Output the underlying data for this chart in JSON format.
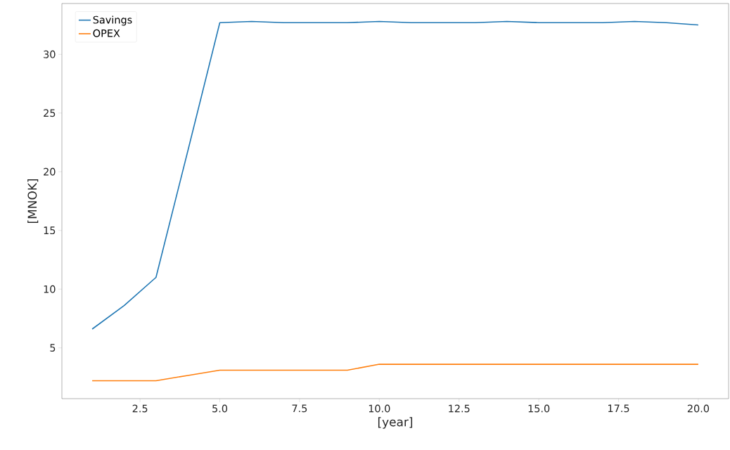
{
  "chart_data": {
    "type": "line",
    "xlabel": "[year]",
    "ylabel": "[MNOK]",
    "x": [
      1,
      2,
      3,
      4,
      5,
      6,
      7,
      8,
      9,
      10,
      11,
      12,
      13,
      14,
      15,
      16,
      17,
      18,
      19,
      20
    ],
    "series": [
      {
        "name": "Savings",
        "color": "#1f77b4",
        "values": [
          6.6,
          8.6,
          11.0,
          21.8,
          32.7,
          32.8,
          32.7,
          32.7,
          32.7,
          32.8,
          32.7,
          32.7,
          32.7,
          32.8,
          32.7,
          32.7,
          32.7,
          32.8,
          32.7,
          32.5
        ]
      },
      {
        "name": "OPEX",
        "color": "#ff7f0e",
        "values": [
          2.2,
          2.2,
          2.2,
          2.65,
          3.1,
          3.1,
          3.1,
          3.1,
          3.1,
          3.6,
          3.6,
          3.6,
          3.6,
          3.6,
          3.6,
          3.6,
          3.6,
          3.6,
          3.6,
          3.6
        ]
      }
    ],
    "xlim": [
      0.05,
      20.95
    ],
    "ylim": [
      0.67,
      34.33
    ],
    "xticks": [
      {
        "value": 2.5,
        "label": "2.5"
      },
      {
        "value": 5,
        "label": "5.0"
      },
      {
        "value": 7.5,
        "label": "7.5"
      },
      {
        "value": 10,
        "label": "10.0"
      },
      {
        "value": 12.5,
        "label": "12.5"
      },
      {
        "value": 15,
        "label": "15.0"
      },
      {
        "value": 17.5,
        "label": "17.5"
      },
      {
        "value": 20,
        "label": "20.0"
      }
    ],
    "yticks": [
      5,
      10,
      15,
      20,
      25,
      30
    ],
    "grid": false,
    "legend": "top left",
    "marker": "none",
    "line_style": "solid"
  }
}
